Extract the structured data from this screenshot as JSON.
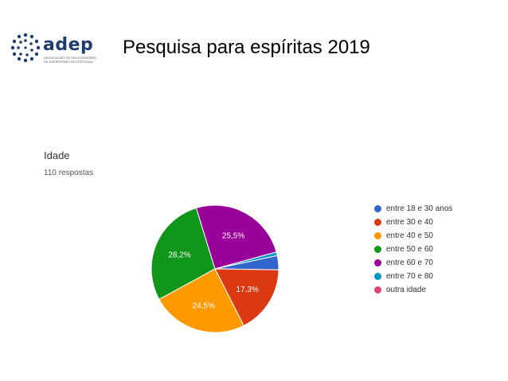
{
  "header": {
    "logo_name": "adep",
    "logo_subtitle": "ASSOCIAÇÃO DE DIVULGADORES DE ESPIRITISMO DE PORTUGAL",
    "title": "Pesquisa para espíritas  2019"
  },
  "chart_data": {
    "type": "pie",
    "title": "Idade",
    "subtitle": "110 respostas",
    "legend_position": "right",
    "slices": [
      {
        "label": "entre 18 e 30 anos",
        "value": 3.6,
        "color": "#3366cc",
        "data_label": ""
      },
      {
        "label": "entre 30 e 40",
        "value": 17.3,
        "color": "#dc3912",
        "data_label": "17,3%"
      },
      {
        "label": "entre 40 e 50",
        "value": 24.5,
        "color": "#ff9900",
        "data_label": "24,5%"
      },
      {
        "label": "entre 50 e 60",
        "value": 28.2,
        "color": "#109618",
        "data_label": "28,2%"
      },
      {
        "label": "entre 60 e 70",
        "value": 25.5,
        "color": "#990099",
        "data_label": "25,5%"
      },
      {
        "label": "entre 70 e 80",
        "value": 0.9,
        "color": "#0099c6",
        "data_label": ""
      },
      {
        "label": "outra idade",
        "value": 0,
        "color": "#dd4477",
        "data_label": ""
      }
    ]
  }
}
